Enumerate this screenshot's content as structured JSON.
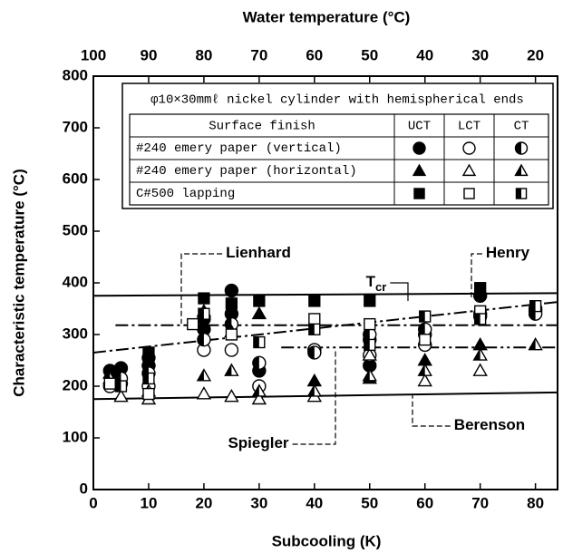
{
  "chart_data": {
    "type": "scatter",
    "xlabel": "Subcooling (K)",
    "x2label": "Water temperature (°C)",
    "ylabel": "Characteristic temperature (°C)",
    "xlim": [
      0,
      84
    ],
    "xticks": [
      0,
      10,
      20,
      30,
      40,
      50,
      60,
      70,
      80
    ],
    "x2lim": [
      100,
      16
    ],
    "x2ticks": [
      100,
      90,
      80,
      70,
      60,
      50,
      40,
      30,
      20
    ],
    "ylim": [
      0,
      800
    ],
    "yticks": [
      0,
      100,
      200,
      300,
      400,
      500,
      600,
      700,
      800
    ],
    "annotation": "φ10×30mmℓ nickel cylinder with hemispherical ends",
    "legend": {
      "title": "Surface finish",
      "columns": [
        "UCT",
        "LCT",
        "CT"
      ],
      "rows": [
        "#240 emery paper (vertical)",
        "#240 emery paper (horizontal)",
        "C#500 lapping"
      ]
    },
    "series": [
      {
        "marker": "circle",
        "fill": "solid",
        "x": [
          3,
          5,
          10,
          10,
          20,
          20,
          25,
          25,
          30,
          40,
          50,
          50,
          60,
          70,
          80
        ],
        "values": [
          230,
          235,
          240,
          255,
          310,
          330,
          385,
          340,
          230,
          270,
          290,
          240,
          300,
          375,
          345
        ]
      },
      {
        "marker": "circle",
        "fill": "open",
        "x": [
          3,
          5,
          10,
          20,
          25,
          30,
          40,
          50,
          60,
          70,
          80
        ],
        "values": [
          200,
          205,
          200,
          270,
          270,
          200,
          270,
          260,
          280,
          335,
          350
        ]
      },
      {
        "marker": "circle",
        "fill": "half",
        "x": [
          5,
          10,
          20,
          25,
          30,
          40,
          50,
          60,
          70,
          80
        ],
        "values": [
          215,
          225,
          290,
          320,
          245,
          265,
          300,
          310,
          340,
          340
        ]
      },
      {
        "marker": "triangle",
        "fill": "solid",
        "x": [
          3,
          10,
          20,
          25,
          30,
          40,
          50,
          60,
          70
        ],
        "values": [
          225,
          250,
          345,
          305,
          340,
          210,
          215,
          250,
          280
        ]
      },
      {
        "marker": "triangle",
        "fill": "open",
        "x": [
          5,
          10,
          20,
          25,
          30,
          40,
          50,
          60,
          70
        ],
        "values": [
          180,
          175,
          185,
          180,
          175,
          180,
          260,
          210,
          230
        ]
      },
      {
        "marker": "triangle",
        "fill": "half",
        "x": [
          3,
          10,
          20,
          25,
          30,
          40,
          50,
          60,
          70,
          80
        ],
        "values": [
          215,
          190,
          220,
          230,
          190,
          190,
          220,
          230,
          260,
          280
        ]
      },
      {
        "marker": "square",
        "fill": "solid",
        "x": [
          10,
          20,
          25,
          30,
          40,
          50,
          70
        ],
        "values": [
          265,
          370,
          360,
          365,
          365,
          365,
          390
        ]
      },
      {
        "marker": "square",
        "fill": "open",
        "x": [
          3,
          10,
          18,
          25,
          40,
          50,
          60,
          70
        ],
        "values": [
          205,
          185,
          320,
          300,
          330,
          320,
          290,
          345
        ]
      },
      {
        "marker": "square",
        "fill": "half",
        "x": [
          5,
          10,
          20,
          30,
          40,
          50,
          60,
          70,
          80
        ],
        "values": [
          200,
          215,
          340,
          285,
          310,
          280,
          335,
          330,
          355
        ]
      }
    ],
    "lines": [
      {
        "name": "Tcr",
        "style": "solid",
        "x": [
          0,
          84
        ],
        "values": [
          375,
          380
        ]
      },
      {
        "name": "Lienhard",
        "style": "dashdot",
        "x": [
          4,
          84
        ],
        "values": [
          318,
          318
        ]
      },
      {
        "name": "Henry",
        "style": "dashdot",
        "x": [
          0,
          84
        ],
        "values": [
          265,
          363
        ]
      },
      {
        "name": "Spiegler",
        "style": "dashdotdot",
        "x": [
          34,
          84
        ],
        "values": [
          275,
          275
        ]
      },
      {
        "name": "Berenson",
        "style": "solid",
        "x": [
          0,
          84
        ],
        "values": [
          175,
          188
        ]
      }
    ]
  }
}
